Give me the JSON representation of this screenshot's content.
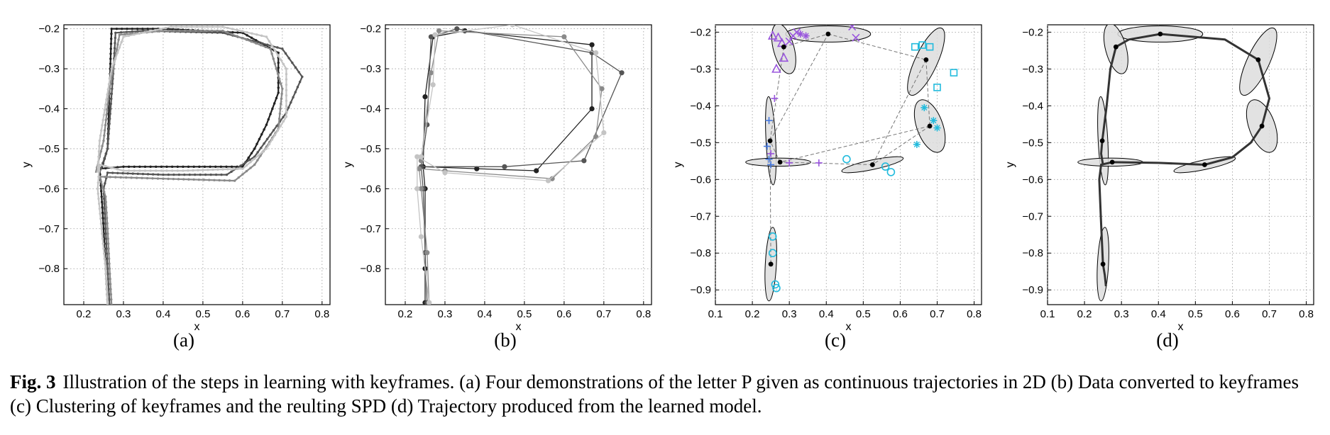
{
  "figure": {
    "label": "Fig. 3",
    "caption": "Illustration of the steps in learning with keyframes. (a) Four demonstrations of the letter P given as continuous trajectories in 2D (b) Data converted to keyframes (c) Clustering of keyframes and the reulting SPD (d) Trajectory produced from the learned model."
  },
  "chart_data": [
    {
      "id": "a",
      "type": "line",
      "caption": "(a)",
      "xlabel": "x",
      "ylabel": "y",
      "xlim": [
        0.15,
        0.82
      ],
      "ylim": [
        -0.89,
        -0.19
      ],
      "xticks": [
        0.2,
        0.3,
        0.4,
        0.5,
        0.6,
        0.7,
        0.8
      ],
      "yticks": [
        -0.2,
        -0.3,
        -0.4,
        -0.5,
        -0.6,
        -0.7,
        -0.8
      ],
      "grid": true,
      "markers": "dense-dots",
      "series": [
        {
          "color": "#222222",
          "points": [
            [
              0.26,
              -0.89
            ],
            [
              0.255,
              -0.8
            ],
            [
              0.25,
              -0.7
            ],
            [
              0.245,
              -0.62
            ],
            [
              0.24,
              -0.55
            ],
            [
              0.3,
              -0.545
            ],
            [
              0.45,
              -0.545
            ],
            [
              0.6,
              -0.545
            ],
            [
              0.63,
              -0.5
            ],
            [
              0.66,
              -0.44
            ],
            [
              0.69,
              -0.36
            ],
            [
              0.69,
              -0.26
            ],
            [
              0.6,
              -0.21
            ],
            [
              0.4,
              -0.2
            ],
            [
              0.27,
              -0.2
            ],
            [
              0.265,
              -0.35
            ],
            [
              0.26,
              -0.5
            ],
            [
              0.245,
              -0.55
            ]
          ]
        },
        {
          "color": "#555555",
          "points": [
            [
              0.265,
              -0.89
            ],
            [
              0.26,
              -0.8
            ],
            [
              0.255,
              -0.7
            ],
            [
              0.25,
              -0.6
            ],
            [
              0.26,
              -0.56
            ],
            [
              0.4,
              -0.565
            ],
            [
              0.56,
              -0.565
            ],
            [
              0.63,
              -0.52
            ],
            [
              0.71,
              -0.41
            ],
            [
              0.75,
              -0.32
            ],
            [
              0.7,
              -0.25
            ],
            [
              0.55,
              -0.21
            ],
            [
              0.35,
              -0.205
            ],
            [
              0.28,
              -0.21
            ],
            [
              0.275,
              -0.3
            ],
            [
              0.26,
              -0.5
            ],
            [
              0.24,
              -0.56
            ]
          ]
        },
        {
          "color": "#8a8a8a",
          "points": [
            [
              0.27,
              -0.89
            ],
            [
              0.265,
              -0.8
            ],
            [
              0.26,
              -0.7
            ],
            [
              0.255,
              -0.62
            ],
            [
              0.24,
              -0.57
            ],
            [
              0.4,
              -0.575
            ],
            [
              0.58,
              -0.58
            ],
            [
              0.63,
              -0.54
            ],
            [
              0.69,
              -0.45
            ],
            [
              0.7,
              -0.35
            ],
            [
              0.67,
              -0.25
            ],
            [
              0.55,
              -0.205
            ],
            [
              0.4,
              -0.205
            ],
            [
              0.29,
              -0.215
            ],
            [
              0.265,
              -0.35
            ],
            [
              0.25,
              -0.48
            ],
            [
              0.23,
              -0.56
            ]
          ]
        },
        {
          "color": "#c4c4c4",
          "points": [
            [
              0.26,
              -0.89
            ],
            [
              0.255,
              -0.8
            ],
            [
              0.245,
              -0.7
            ],
            [
              0.235,
              -0.6
            ],
            [
              0.24,
              -0.54
            ],
            [
              0.3,
              -0.555
            ],
            [
              0.45,
              -0.555
            ],
            [
              0.6,
              -0.55
            ],
            [
              0.66,
              -0.5
            ],
            [
              0.71,
              -0.42
            ],
            [
              0.71,
              -0.3
            ],
            [
              0.66,
              -0.22
            ],
            [
              0.55,
              -0.195
            ],
            [
              0.42,
              -0.195
            ],
            [
              0.3,
              -0.22
            ],
            [
              0.27,
              -0.3
            ],
            [
              0.24,
              -0.48
            ],
            [
              0.235,
              -0.56
            ]
          ]
        }
      ]
    },
    {
      "id": "b",
      "type": "line",
      "caption": "(b)",
      "xlabel": "x",
      "ylabel": "y",
      "xlim": [
        0.15,
        0.82
      ],
      "ylim": [
        -0.89,
        -0.19
      ],
      "xticks": [
        0.2,
        0.3,
        0.4,
        0.5,
        0.6,
        0.7,
        0.8
      ],
      "yticks": [
        -0.2,
        -0.3,
        -0.4,
        -0.5,
        -0.6,
        -0.7,
        -0.8
      ],
      "grid": true,
      "markers": "keyframe-dots",
      "series": [
        {
          "color": "#222222",
          "points": [
            [
              0.25,
              -0.885
            ],
            [
              0.25,
              -0.8
            ],
            [
              0.25,
              -0.6
            ],
            [
              0.245,
              -0.545
            ],
            [
              0.38,
              -0.55
            ],
            [
              0.53,
              -0.555
            ],
            [
              0.67,
              -0.4
            ],
            [
              0.67,
              -0.24
            ],
            [
              0.35,
              -0.205
            ],
            [
              0.27,
              -0.22
            ],
            [
              0.25,
              -0.37
            ],
            [
              0.245,
              -0.545
            ]
          ]
        },
        {
          "color": "#555555",
          "points": [
            [
              0.255,
              -0.885
            ],
            [
              0.25,
              -0.76
            ],
            [
              0.245,
              -0.6
            ],
            [
              0.24,
              -0.545
            ],
            [
              0.45,
              -0.545
            ],
            [
              0.65,
              -0.53
            ],
            [
              0.745,
              -0.31
            ],
            [
              0.67,
              -0.26
            ],
            [
              0.33,
              -0.2
            ],
            [
              0.265,
              -0.22
            ],
            [
              0.255,
              -0.44
            ],
            [
              0.24,
              -0.545
            ]
          ]
        },
        {
          "color": "#8a8a8a",
          "points": [
            [
              0.26,
              -0.885
            ],
            [
              0.255,
              -0.76
            ],
            [
              0.24,
              -0.6
            ],
            [
              0.235,
              -0.55
            ],
            [
              0.3,
              -0.555
            ],
            [
              0.57,
              -0.575
            ],
            [
              0.68,
              -0.47
            ],
            [
              0.695,
              -0.35
            ],
            [
              0.6,
              -0.22
            ],
            [
              0.285,
              -0.205
            ],
            [
              0.265,
              -0.31
            ],
            [
              0.24,
              -0.53
            ]
          ]
        },
        {
          "color": "#c4c4c4",
          "points": [
            [
              0.26,
              -0.885
            ],
            [
              0.24,
              -0.72
            ],
            [
              0.23,
              -0.6
            ],
            [
              0.23,
              -0.52
            ],
            [
              0.3,
              -0.56
            ],
            [
              0.56,
              -0.58
            ],
            [
              0.7,
              -0.46
            ],
            [
              0.68,
              -0.26
            ],
            [
              0.47,
              -0.19
            ],
            [
              0.275,
              -0.215
            ],
            [
              0.27,
              -0.34
            ],
            [
              0.24,
              -0.52
            ]
          ]
        }
      ]
    },
    {
      "id": "c",
      "type": "scatter",
      "caption": "(c)",
      "xlabel": "x",
      "ylabel": "y",
      "xlim": [
        0.1,
        0.82
      ],
      "ylim": [
        -0.94,
        -0.18
      ],
      "xticks": [
        0.1,
        0.2,
        0.3,
        0.4,
        0.5,
        0.6,
        0.7,
        0.8
      ],
      "yticks": [
        -0.2,
        -0.3,
        -0.4,
        -0.5,
        -0.6,
        -0.7,
        -0.8,
        -0.9
      ],
      "grid": true,
      "ellipses": [
        {
          "cx": 0.405,
          "cy": -0.205,
          "rx": 0.115,
          "ry": 0.022,
          "angle": 0
        },
        {
          "cx": 0.285,
          "cy": -0.245,
          "rx": 0.028,
          "ry": 0.07,
          "angle": 15
        },
        {
          "cx": 0.67,
          "cy": -0.28,
          "rx": 0.03,
          "ry": 0.1,
          "angle": -25
        },
        {
          "cx": 0.68,
          "cy": -0.455,
          "rx": 0.035,
          "ry": 0.075,
          "angle": 20
        },
        {
          "cx": 0.25,
          "cy": -0.495,
          "rx": 0.013,
          "ry": 0.12,
          "angle": 3
        },
        {
          "cx": 0.27,
          "cy": -0.553,
          "rx": 0.088,
          "ry": 0.011,
          "angle": 0
        },
        {
          "cx": 0.525,
          "cy": -0.56,
          "rx": 0.085,
          "ry": 0.013,
          "angle": 12
        },
        {
          "cx": 0.25,
          "cy": -0.83,
          "rx": 0.015,
          "ry": 0.1,
          "angle": -3
        }
      ],
      "means": [
        [
          0.405,
          -0.205
        ],
        [
          0.285,
          -0.24
        ],
        [
          0.67,
          -0.275
        ],
        [
          0.68,
          -0.455
        ],
        [
          0.248,
          -0.495
        ],
        [
          0.275,
          -0.553
        ],
        [
          0.525,
          -0.56
        ],
        [
          0.25,
          -0.83
        ]
      ],
      "symbol_points": [
        {
          "symbol": "x",
          "color": "#9955dd",
          "points": [
            [
              0.31,
              -0.21
            ],
            [
              0.32,
              -0.2
            ],
            [
              0.47,
              -0.185
            ],
            [
              0.48,
              -0.215
            ],
            [
              0.3,
              -0.225
            ]
          ]
        },
        {
          "symbol": "triangle",
          "color": "#9955dd",
          "points": [
            [
              0.255,
              -0.21
            ],
            [
              0.27,
              -0.215
            ],
            [
              0.28,
              -0.23
            ],
            [
              0.285,
              -0.27
            ],
            [
              0.265,
              -0.3
            ]
          ]
        },
        {
          "symbol": "star",
          "color": "#9955dd",
          "points": [
            [
              0.33,
              -0.205
            ],
            [
              0.345,
              -0.21
            ]
          ]
        },
        {
          "symbol": "plus",
          "color": "#9955dd",
          "points": [
            [
              0.26,
              -0.38
            ],
            [
              0.38,
              -0.555
            ],
            [
              0.3,
              -0.555
            ],
            [
              0.25,
              -0.53
            ]
          ]
        },
        {
          "symbol": "square",
          "color": "#22bbdd",
          "points": [
            [
              0.64,
              -0.24
            ],
            [
              0.66,
              -0.235
            ],
            [
              0.68,
              -0.24
            ],
            [
              0.745,
              -0.31
            ],
            [
              0.7,
              -0.35
            ]
          ]
        },
        {
          "symbol": "star",
          "color": "#22bbdd",
          "points": [
            [
              0.665,
              -0.405
            ],
            [
              0.69,
              -0.44
            ],
            [
              0.7,
              -0.46
            ],
            [
              0.645,
              -0.505
            ]
          ]
        },
        {
          "symbol": "circle",
          "color": "#22bbdd",
          "points": [
            [
              0.455,
              -0.545
            ],
            [
              0.56,
              -0.565
            ],
            [
              0.575,
              -0.58
            ],
            [
              0.255,
              -0.755
            ],
            [
              0.255,
              -0.8
            ],
            [
              0.262,
              -0.885
            ],
            [
              0.265,
              -0.895
            ]
          ]
        },
        {
          "symbol": "plus",
          "color": "#4477dd",
          "points": [
            [
              0.245,
              -0.44
            ],
            [
              0.24,
              -0.51
            ],
            [
              0.245,
              -0.545
            ],
            [
              0.25,
              -0.56
            ]
          ]
        }
      ]
    },
    {
      "id": "d",
      "type": "line",
      "caption": "(d)",
      "xlabel": "x",
      "ylabel": "y",
      "xlim": [
        0.1,
        0.82
      ],
      "ylim": [
        -0.94,
        -0.18
      ],
      "xticks": [
        0.1,
        0.2,
        0.3,
        0.4,
        0.5,
        0.6,
        0.7,
        0.8
      ],
      "yticks": [
        -0.2,
        -0.3,
        -0.4,
        -0.5,
        -0.6,
        -0.7,
        -0.8,
        -0.9
      ],
      "grid": true,
      "ellipses": [
        {
          "cx": 0.405,
          "cy": -0.205,
          "rx": 0.115,
          "ry": 0.022,
          "angle": 0
        },
        {
          "cx": 0.285,
          "cy": -0.245,
          "rx": 0.028,
          "ry": 0.07,
          "angle": 15
        },
        {
          "cx": 0.67,
          "cy": -0.28,
          "rx": 0.03,
          "ry": 0.1,
          "angle": -25
        },
        {
          "cx": 0.68,
          "cy": -0.455,
          "rx": 0.035,
          "ry": 0.075,
          "angle": 20
        },
        {
          "cx": 0.25,
          "cy": -0.495,
          "rx": 0.013,
          "ry": 0.12,
          "angle": 3
        },
        {
          "cx": 0.27,
          "cy": -0.553,
          "rx": 0.088,
          "ry": 0.011,
          "angle": 0
        },
        {
          "cx": 0.525,
          "cy": -0.56,
          "rx": 0.085,
          "ry": 0.013,
          "angle": 12
        },
        {
          "cx": 0.25,
          "cy": -0.83,
          "rx": 0.015,
          "ry": 0.1,
          "angle": -3
        }
      ],
      "means": [
        [
          0.405,
          -0.205
        ],
        [
          0.285,
          -0.24
        ],
        [
          0.67,
          -0.275
        ],
        [
          0.68,
          -0.455
        ],
        [
          0.248,
          -0.495
        ],
        [
          0.275,
          -0.553
        ],
        [
          0.525,
          -0.56
        ],
        [
          0.25,
          -0.83
        ]
      ],
      "trajectory": [
        [
          0.258,
          -0.89
        ],
        [
          0.255,
          -0.86
        ],
        [
          0.25,
          -0.83
        ],
        [
          0.245,
          -0.72
        ],
        [
          0.24,
          -0.6
        ],
        [
          0.245,
          -0.56
        ],
        [
          0.275,
          -0.553
        ],
        [
          0.4,
          -0.555
        ],
        [
          0.525,
          -0.56
        ],
        [
          0.6,
          -0.54
        ],
        [
          0.65,
          -0.5
        ],
        [
          0.68,
          -0.455
        ],
        [
          0.7,
          -0.38
        ],
        [
          0.67,
          -0.275
        ],
        [
          0.58,
          -0.22
        ],
        [
          0.405,
          -0.205
        ],
        [
          0.32,
          -0.22
        ],
        [
          0.285,
          -0.24
        ],
        [
          0.27,
          -0.3
        ],
        [
          0.26,
          -0.4
        ],
        [
          0.248,
          -0.495
        ],
        [
          0.245,
          -0.53
        ],
        [
          0.25,
          -0.56
        ]
      ]
    }
  ]
}
